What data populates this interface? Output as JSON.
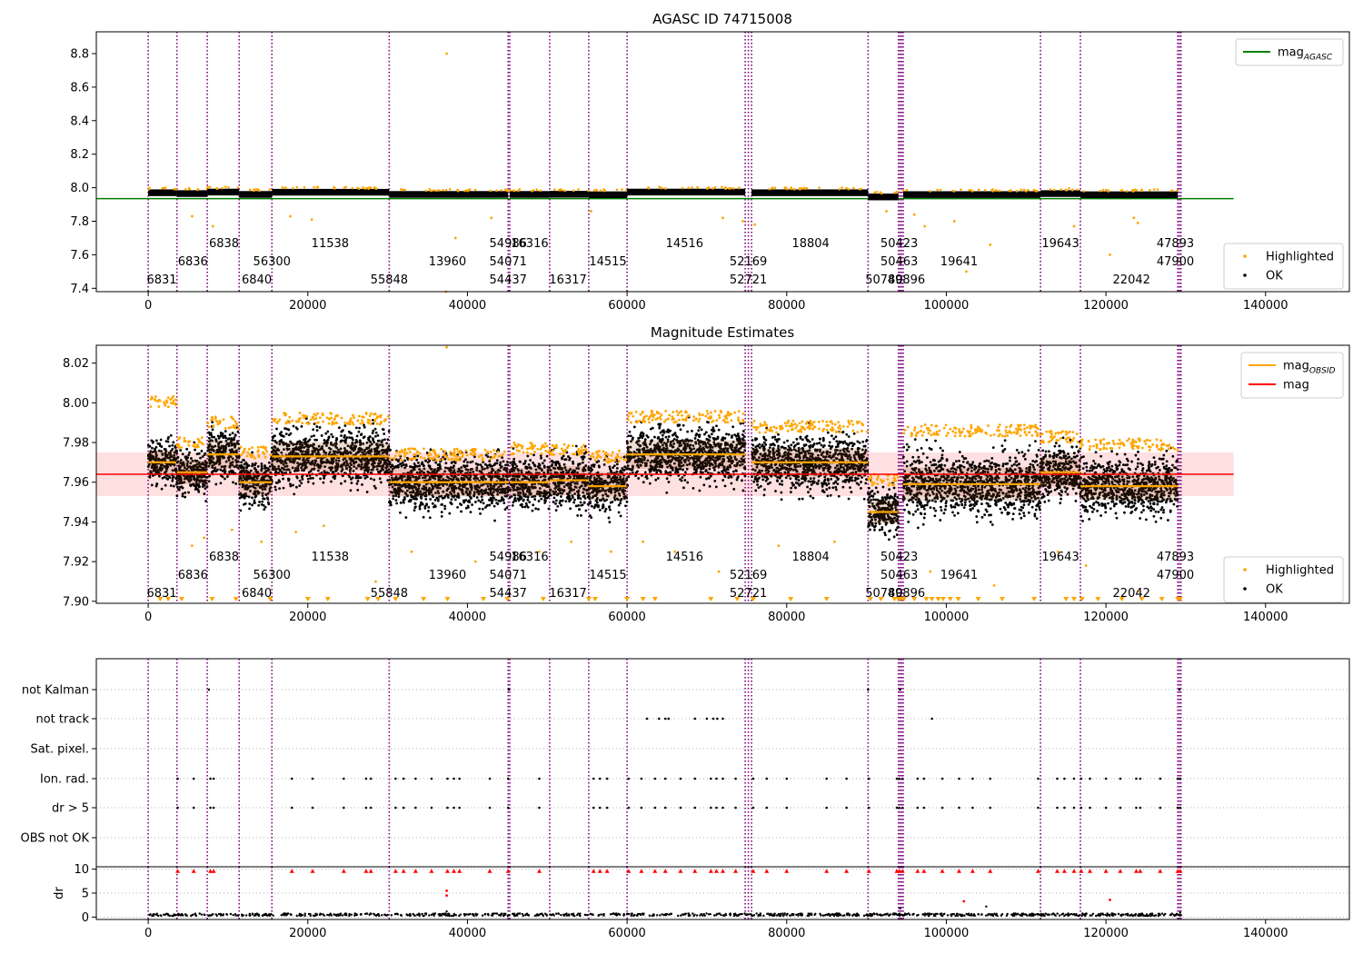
{
  "obs_lines_x": [
    0,
    3600,
    7400,
    11400,
    15500,
    30200,
    45100,
    45300,
    50300,
    55200,
    60000,
    74800,
    75200,
    75600,
    90200,
    94000,
    94200,
    94400,
    94600,
    111800,
    116800,
    129000,
    129200,
    129400
  ],
  "obsid_labels": [
    {
      "text": "6831",
      "x": 1700,
      "row": 2
    },
    {
      "text": "6836",
      "x": 5600,
      "row": 1
    },
    {
      "text": "6838",
      "x": 9500,
      "row": 0
    },
    {
      "text": "6840",
      "x": 13600,
      "row": 2
    },
    {
      "text": "56300",
      "x": 15500,
      "row": 1
    },
    {
      "text": "11538",
      "x": 22800,
      "row": 0
    },
    {
      "text": "55848",
      "x": 30200,
      "row": 2
    },
    {
      "text": "13960",
      "x": 37500,
      "row": 1
    },
    {
      "text": "54986",
      "x": 45100,
      "row": 0
    },
    {
      "text": "54071",
      "x": 45100,
      "row": 1
    },
    {
      "text": "54437",
      "x": 45100,
      "row": 2
    },
    {
      "text": "16316",
      "x": 47800,
      "row": 0
    },
    {
      "text": "16317",
      "x": 52600,
      "row": 2
    },
    {
      "text": "14515",
      "x": 57600,
      "row": 1
    },
    {
      "text": "14516",
      "x": 67200,
      "row": 0
    },
    {
      "text": "52169",
      "x": 75200,
      "row": 1
    },
    {
      "text": "52721",
      "x": 75200,
      "row": 2
    },
    {
      "text": "18804",
      "x": 83000,
      "row": 0
    },
    {
      "text": "50423",
      "x": 94100,
      "row": 0
    },
    {
      "text": "50463",
      "x": 94100,
      "row": 1
    },
    {
      "text": "50780",
      "x": 92200,
      "row": 2
    },
    {
      "text": "49896",
      "x": 95000,
      "row": 2
    },
    {
      "text": "19641",
      "x": 101600,
      "row": 1
    },
    {
      "text": "19643",
      "x": 114300,
      "row": 0
    },
    {
      "text": "22042",
      "x": 123200,
      "row": 2
    },
    {
      "text": "47893",
      "x": 128700,
      "row": 0
    },
    {
      "text": "47900",
      "x": 128700,
      "row": 1
    }
  ],
  "chart_data": [
    {
      "type": "scatter",
      "title": "AGASC ID 74715008",
      "xlabel": "",
      "ylabel": "",
      "xlim": [
        -6500,
        150500
      ],
      "ylim": [
        7.38,
        8.93
      ],
      "xticks": [
        0,
        20000,
        40000,
        60000,
        80000,
        100000,
        120000,
        140000
      ],
      "yticks": [
        7.4,
        7.6,
        7.8,
        8.0,
        8.2,
        8.4,
        8.6,
        8.8
      ],
      "reference_line": {
        "name": "mag_AGASC",
        "y": 7.935,
        "x": [
          -6500,
          136000
        ],
        "color": "#008000"
      },
      "series": [
        {
          "name": "Highlighted",
          "color": "#ffa500"
        },
        {
          "name": "OK",
          "color": "#000000"
        }
      ],
      "segments": [
        {
          "x": [
            0,
            3600
          ],
          "mean": 7.97
        },
        {
          "x": [
            3600,
            7400
          ],
          "mean": 7.965
        },
        {
          "x": [
            7400,
            11400
          ],
          "mean": 7.974
        },
        {
          "x": [
            11400,
            15500
          ],
          "mean": 7.96
        },
        {
          "x": [
            15500,
            30200
          ],
          "mean": 7.973
        },
        {
          "x": [
            30200,
            45100
          ],
          "mean": 7.96
        },
        {
          "x": [
            45300,
            50300
          ],
          "mean": 7.96
        },
        {
          "x": [
            50300,
            55200
          ],
          "mean": 7.961
        },
        {
          "x": [
            55200,
            60000
          ],
          "mean": 7.958
        },
        {
          "x": [
            60000,
            74800
          ],
          "mean": 7.974
        },
        {
          "x": [
            75600,
            90200
          ],
          "mean": 7.97
        },
        {
          "x": [
            90200,
            94000
          ],
          "mean": 7.945
        },
        {
          "x": [
            94600,
            111800
          ],
          "mean": 7.959
        },
        {
          "x": [
            111800,
            116800
          ],
          "mean": 7.965
        },
        {
          "x": [
            116800,
            129000
          ],
          "mean": 7.958
        }
      ],
      "outliers": [
        {
          "x": 37400,
          "y": 8.8
        },
        {
          "x": 37300,
          "y": 7.38
        },
        {
          "x": 5500,
          "y": 7.83
        },
        {
          "x": 8100,
          "y": 7.77
        },
        {
          "x": 17800,
          "y": 7.83
        },
        {
          "x": 20500,
          "y": 7.81
        },
        {
          "x": 38500,
          "y": 7.7
        },
        {
          "x": 43000,
          "y": 7.82
        },
        {
          "x": 55500,
          "y": 7.86
        },
        {
          "x": 72000,
          "y": 7.82
        },
        {
          "x": 74500,
          "y": 7.8
        },
        {
          "x": 76000,
          "y": 7.78
        },
        {
          "x": 92500,
          "y": 7.86
        },
        {
          "x": 96000,
          "y": 7.84
        },
        {
          "x": 97300,
          "y": 7.77
        },
        {
          "x": 101000,
          "y": 7.8
        },
        {
          "x": 102500,
          "y": 7.5
        },
        {
          "x": 105500,
          "y": 7.66
        },
        {
          "x": 116000,
          "y": 7.77
        },
        {
          "x": 120500,
          "y": 7.6
        },
        {
          "x": 123500,
          "y": 7.82
        },
        {
          "x": 124000,
          "y": 7.79
        }
      ],
      "legends": [
        {
          "placement": "upper-right",
          "entries": [
            {
              "label": "mag",
              "sub": "AGASC",
              "color": "#008000",
              "kind": "line"
            }
          ]
        },
        {
          "placement": "lower-right",
          "entries": [
            {
              "label": "Highlighted",
              "color": "#ffa500",
              "kind": "dot"
            },
            {
              "label": "OK",
              "color": "#000000",
              "kind": "dot"
            }
          ]
        }
      ]
    },
    {
      "type": "scatter",
      "title": "Magnitude Estimates",
      "xlabel": "",
      "ylabel": "",
      "xlim": [
        -6500,
        150500
      ],
      "ylim": [
        7.899,
        8.029
      ],
      "xticks": [
        0,
        20000,
        40000,
        60000,
        80000,
        100000,
        120000,
        140000
      ],
      "yticks": [
        7.9,
        7.92,
        7.94,
        7.96,
        7.98,
        8.0,
        8.02
      ],
      "reference_line": {
        "name": "mag",
        "y": 7.964,
        "x": [
          -6500,
          136000
        ],
        "color": "#ff0000"
      },
      "reference_band": {
        "y": [
          7.953,
          7.975
        ],
        "color": "#ffcccc"
      },
      "series": [
        {
          "name": "Highlighted",
          "color": "#ffa500"
        },
        {
          "name": "OK",
          "color": "#000000"
        }
      ],
      "segments": [
        {
          "x": [
            0,
            3600
          ],
          "mean": 7.97,
          "half_width": 0.01,
          "top": 8.004
        },
        {
          "x": [
            3600,
            7400
          ],
          "mean": 7.965,
          "half_width": 0.01,
          "top": 7.983
        },
        {
          "x": [
            7400,
            11400
          ],
          "mean": 7.974,
          "half_width": 0.012,
          "top": 7.993
        },
        {
          "x": [
            11400,
            15500
          ],
          "mean": 7.96,
          "half_width": 0.011,
          "top": 7.978
        },
        {
          "x": [
            15500,
            30200
          ],
          "mean": 7.973,
          "half_width": 0.012,
          "top": 7.995
        },
        {
          "x": [
            30200,
            45100
          ],
          "mean": 7.96,
          "half_width": 0.012,
          "top": 7.977
        },
        {
          "x": [
            45300,
            50300
          ],
          "mean": 7.96,
          "half_width": 0.012,
          "top": 7.98
        },
        {
          "x": [
            50300,
            55200
          ],
          "mean": 7.961,
          "half_width": 0.012,
          "top": 7.979
        },
        {
          "x": [
            55200,
            60000
          ],
          "mean": 7.958,
          "half_width": 0.012,
          "top": 7.976
        },
        {
          "x": [
            60000,
            74800
          ],
          "mean": 7.974,
          "half_width": 0.012,
          "top": 7.996
        },
        {
          "x": [
            75600,
            90200
          ],
          "mean": 7.97,
          "half_width": 0.012,
          "top": 7.991
        },
        {
          "x": [
            90200,
            94000
          ],
          "mean": 7.945,
          "half_width": 0.01,
          "top": 7.964
        },
        {
          "x": [
            94600,
            111800
          ],
          "mean": 7.959,
          "half_width": 0.014,
          "top": 7.989
        },
        {
          "x": [
            111800,
            116800
          ],
          "mean": 7.965,
          "half_width": 0.012,
          "top": 7.986
        },
        {
          "x": [
            116800,
            129000
          ],
          "mean": 7.958,
          "half_width": 0.012,
          "top": 7.982
        }
      ],
      "outliers": [
        {
          "x": 37400,
          "y": 8.028
        },
        {
          "x": 5500,
          "y": 7.928
        },
        {
          "x": 7000,
          "y": 7.932
        },
        {
          "x": 10500,
          "y": 7.936
        },
        {
          "x": 14200,
          "y": 7.93
        },
        {
          "x": 18500,
          "y": 7.935
        },
        {
          "x": 22000,
          "y": 7.938
        },
        {
          "x": 28500,
          "y": 7.91
        },
        {
          "x": 33000,
          "y": 7.925
        },
        {
          "x": 41000,
          "y": 7.92
        },
        {
          "x": 49000,
          "y": 7.925
        },
        {
          "x": 53000,
          "y": 7.93
        },
        {
          "x": 58000,
          "y": 7.925
        },
        {
          "x": 62000,
          "y": 7.93
        },
        {
          "x": 66000,
          "y": 7.925
        },
        {
          "x": 71500,
          "y": 7.915
        },
        {
          "x": 79000,
          "y": 7.928
        },
        {
          "x": 86000,
          "y": 7.93
        },
        {
          "x": 98000,
          "y": 7.915
        },
        {
          "x": 106000,
          "y": 7.908
        },
        {
          "x": 114000,
          "y": 7.925
        },
        {
          "x": 117500,
          "y": 7.918
        },
        {
          "x": 124000,
          "y": 7.905
        }
      ],
      "lower_limit_markers_x": [
        1500,
        2500,
        4200,
        8000,
        11000,
        15300,
        20000,
        22500,
        27500,
        28800,
        31000,
        34500,
        37500,
        42000,
        45000,
        49500,
        55200,
        56000,
        60000,
        62000,
        63500,
        70500,
        73800,
        75800,
        80500,
        85000,
        90500,
        91800,
        93500,
        94000,
        94300,
        94700,
        96000,
        97500,
        98200,
        99000,
        99600,
        100500,
        101500,
        104000,
        107000,
        111000,
        115000,
        116000,
        117000,
        119000,
        122000,
        124500,
        127000,
        129000,
        129300
      ],
      "legends": [
        {
          "placement": "upper-right",
          "entries": [
            {
              "label": "mag",
              "sub": "OBSID",
              "color": "#ffa500",
              "kind": "line"
            },
            {
              "label": "mag",
              "sub": "",
              "color": "#ff0000",
              "kind": "line"
            }
          ]
        },
        {
          "placement": "lower-right",
          "entries": [
            {
              "label": "Highlighted",
              "color": "#ffa500",
              "kind": "dot"
            },
            {
              "label": "OK",
              "color": "#000000",
              "kind": "dot"
            }
          ]
        }
      ]
    },
    {
      "type": "scatter",
      "title": "",
      "xlabel": "",
      "ylabel": "",
      "xlim": [
        -6500,
        150500
      ],
      "categories": [
        "not Kalman",
        "not track",
        "Sat. pixel.",
        "Ion. rad.",
        "dr > 5",
        "OBS not OK"
      ],
      "xticks": [
        0,
        20000,
        40000,
        60000,
        80000,
        100000,
        120000,
        140000
      ],
      "flags": {
        "not Kalman": [
          7600,
          45200,
          90200,
          94200,
          129200
        ],
        "not track": [
          62500,
          64000,
          64800,
          65200,
          68500,
          70000,
          70800,
          71300,
          72000,
          98200
        ],
        "Sat. pixel.": [],
        "Ion. rad.": [
          3700,
          5700,
          7800,
          8200,
          18000,
          20600,
          24500,
          27300,
          27900,
          31000,
          32000,
          33500,
          35500,
          37500,
          38300,
          39000,
          42800,
          45100,
          49000,
          55800,
          56600,
          57500,
          60200,
          61800,
          63500,
          64800,
          66700,
          68500,
          70500,
          71200,
          72000,
          73600,
          75800,
          77500,
          80000,
          85000,
          87500,
          90300,
          93800,
          94100,
          94500,
          96400,
          97200,
          99500,
          101600,
          103300,
          105500,
          111500,
          113900,
          114800,
          116000,
          116900,
          118000,
          120000,
          121800,
          123800,
          124300,
          126800,
          129000,
          129300
        ],
        "dr > 5": [
          3700,
          5700,
          7800,
          8200,
          18000,
          20600,
          24500,
          27300,
          27900,
          31000,
          32000,
          33500,
          35500,
          37500,
          38300,
          39000,
          42800,
          45100,
          49000,
          55800,
          56600,
          57500,
          60200,
          61800,
          63500,
          64800,
          66700,
          68500,
          70500,
          71200,
          72000,
          73600,
          75800,
          77500,
          80000,
          85000,
          87500,
          90300,
          93800,
          94100,
          94500,
          96400,
          97200,
          99500,
          101600,
          103300,
          105500,
          111500,
          113900,
          114800,
          116000,
          116900,
          118000,
          120000,
          121800,
          123800,
          124300,
          126800,
          129000,
          129300
        ],
        "OBS not OK": []
      }
    },
    {
      "type": "scatter",
      "title": "",
      "xlabel": "",
      "ylabel": "dr",
      "xlim": [
        -6500,
        150500
      ],
      "ylim": [
        -0.5,
        10.5
      ],
      "yticks": [
        0,
        5,
        10
      ],
      "xticks": [
        0,
        20000,
        40000,
        60000,
        80000,
        100000,
        120000,
        140000
      ],
      "clipped_markers_x": [
        3700,
        5700,
        7800,
        8200,
        18000,
        20600,
        24500,
        27300,
        27900,
        31000,
        32000,
        33500,
        35500,
        37500,
        38300,
        39000,
        42800,
        45100,
        49000,
        55800,
        56600,
        57500,
        60200,
        61800,
        63500,
        64800,
        66700,
        68500,
        70500,
        71200,
        72000,
        73600,
        75800,
        77500,
        80000,
        85000,
        87500,
        90300,
        93800,
        94100,
        94500,
        96400,
        97200,
        99500,
        101600,
        103300,
        105500,
        111500,
        113900,
        114800,
        116000,
        116900,
        118000,
        120000,
        121800,
        123800,
        124300,
        126800,
        129000,
        129300
      ],
      "red_points": [
        {
          "x": 37400,
          "y": 5.5
        },
        {
          "x": 37400,
          "y": 4.5
        },
        {
          "x": 102200,
          "y": 3.3
        },
        {
          "x": 120500,
          "y": 3.6
        }
      ],
      "small_outliers": [
        {
          "x": 37400,
          "y": 1.2
        },
        {
          "x": 94200,
          "y": 1.8
        },
        {
          "x": 105000,
          "y": 2.2
        },
        {
          "x": 129300,
          "y": 0.9
        }
      ]
    }
  ]
}
